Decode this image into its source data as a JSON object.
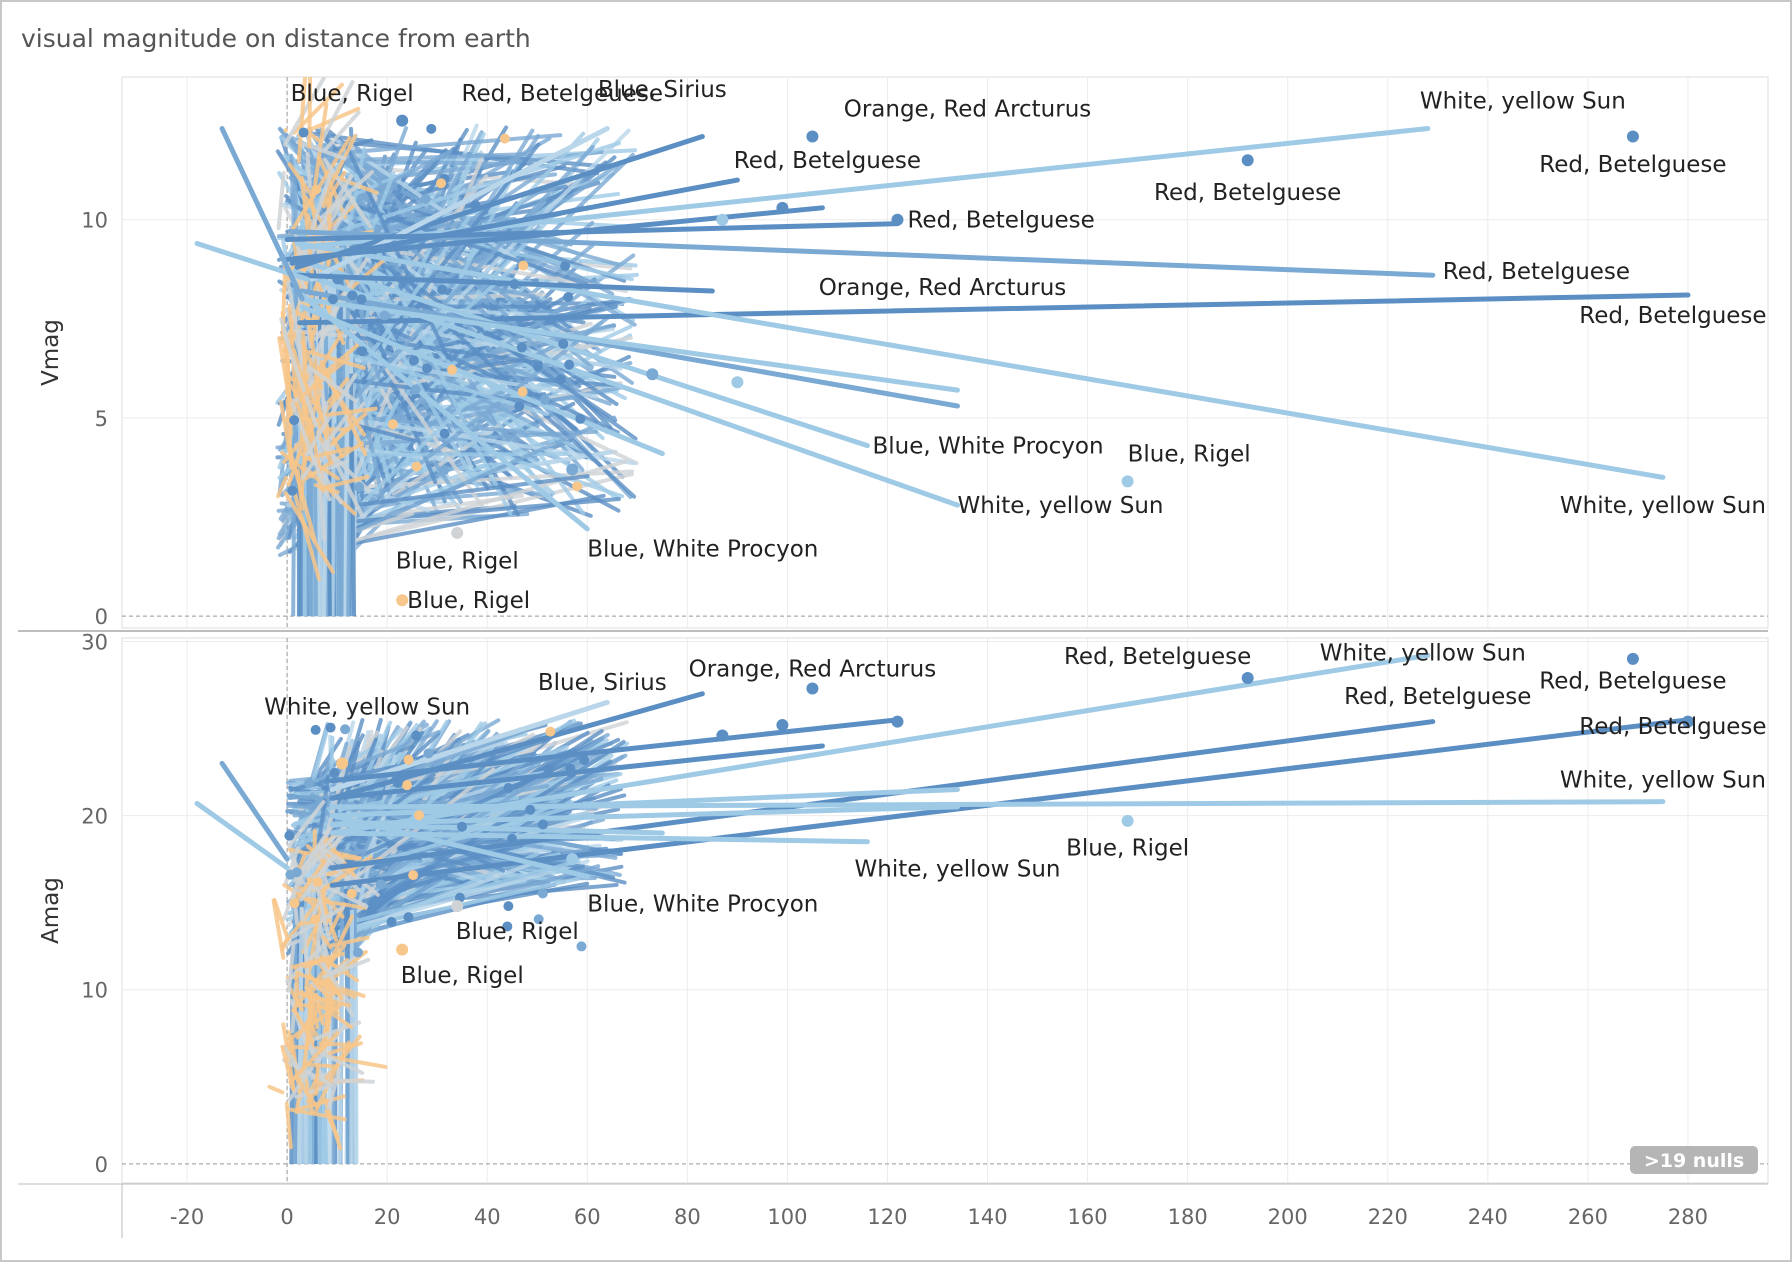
{
  "title": "visual magnitude on distance from earth",
  "null_badge": ">19 nulls",
  "colors": {
    "dark_blue": "#5b8fc4",
    "mid_blue": "#7aa9d3",
    "light_blue": "#9fcae6",
    "pale_blue": "#b9d6ea",
    "gray": "#cfd3d6",
    "orange": "#f7c68a",
    "grid": "#ececec",
    "zero_line": "#999999",
    "badge": "#b5b5b5"
  },
  "chart_data": [
    {
      "type": "line",
      "ylabel": "Vmag",
      "xlim": [
        -33,
        296
      ],
      "ylim": [
        -0.3,
        13.6
      ],
      "yticks": [
        0,
        5,
        10
      ],
      "xticks": [
        -20,
        0,
        20,
        40,
        60,
        80,
        100,
        120,
        140,
        160,
        180,
        200,
        220,
        240,
        260,
        280
      ],
      "grid": true,
      "long_segments": [
        {
          "x1": 0.8,
          "y1": 9.7,
          "x2": 229,
          "y2": 8.6,
          "color": "mid_blue"
        },
        {
          "x1": 2.5,
          "y1": 7.4,
          "x2": 280,
          "y2": 8.1,
          "color": "dark_blue"
        },
        {
          "x1": 3.0,
          "y1": 9.3,
          "x2": 228,
          "y2": 12.3,
          "color": "light_blue"
        },
        {
          "x1": 2.0,
          "y1": 9.4,
          "x2": 275,
          "y2": 3.5,
          "color": "light_blue"
        },
        {
          "x1": 1.5,
          "y1": 8.7,
          "x2": 134,
          "y2": 2.8,
          "color": "light_blue"
        },
        {
          "x1": 2.0,
          "y1": 9.0,
          "x2": 116,
          "y2": 4.3,
          "color": "light_blue"
        },
        {
          "x1": 2.0,
          "y1": 8.8,
          "x2": 83,
          "y2": 12.1,
          "color": "dark_blue"
        },
        {
          "x1": 5.0,
          "y1": 8.5,
          "x2": 64,
          "y2": 12.3,
          "color": "pale_blue"
        },
        {
          "x1": 0.0,
          "y1": 9.5,
          "x2": 122,
          "y2": 9.9,
          "color": "dark_blue"
        },
        {
          "x1": 0.0,
          "y1": 9.0,
          "x2": 107,
          "y2": 10.3,
          "color": "dark_blue"
        },
        {
          "x1": 3.0,
          "y1": 8.2,
          "x2": 134,
          "y2": 5.3,
          "color": "mid_blue"
        },
        {
          "x1": 3.0,
          "y1": 8.0,
          "x2": 134,
          "y2": 5.7,
          "color": "light_blue"
        },
        {
          "x1": 1.0,
          "y1": 8.9,
          "x2": 90,
          "y2": 11.0,
          "color": "dark_blue"
        },
        {
          "x1": 2.0,
          "y1": 8.6,
          "x2": 85,
          "y2": 8.2,
          "color": "dark_blue"
        },
        {
          "x1": 3.0,
          "y1": 8.1,
          "x2": 60,
          "y2": 2.2,
          "color": "light_blue"
        },
        {
          "x1": 3.0,
          "y1": 7.8,
          "x2": 75,
          "y2": 4.1,
          "color": "light_blue"
        },
        {
          "x1": -18,
          "y1": 9.4,
          "x2": 4,
          "y2": 8.5,
          "color": "light_blue"
        },
        {
          "x1": -13,
          "y1": 12.3,
          "x2": 3,
          "y2": 8.0,
          "color": "mid_blue"
        }
      ],
      "points": [
        {
          "x": 105,
          "y": 12.1,
          "color": "dark_blue"
        },
        {
          "x": 269,
          "y": 12.1,
          "color": "dark_blue"
        },
        {
          "x": 192,
          "y": 11.5,
          "color": "dark_blue"
        },
        {
          "x": 122,
          "y": 10.0,
          "color": "dark_blue"
        },
        {
          "x": 168,
          "y": 3.4,
          "color": "light_blue"
        },
        {
          "x": 23,
          "y": 0.4,
          "color": "orange"
        },
        {
          "x": 34,
          "y": 2.1,
          "color": "gray"
        },
        {
          "x": 57,
          "y": 3.7,
          "color": "mid_blue"
        },
        {
          "x": 73,
          "y": 6.1,
          "color": "mid_blue"
        },
        {
          "x": 90,
          "y": 5.9,
          "color": "light_blue"
        },
        {
          "x": 23,
          "y": 12.5,
          "color": "dark_blue"
        },
        {
          "x": 99,
          "y": 10.3,
          "color": "dark_blue"
        },
        {
          "x": 87,
          "y": 10.0,
          "color": "light_blue"
        }
      ],
      "annotations": [
        {
          "text": "Blue, Rigel",
          "x": 13,
          "y": 13.0,
          "anchor": "middle"
        },
        {
          "text": "Red, Betelgeuese",
          "x": 55,
          "y": 13.0,
          "anchor": "middle"
        },
        {
          "text": "Blue, Sirius",
          "x": 75,
          "y": 13.1,
          "anchor": "middle"
        },
        {
          "text": "Orange, Red Arcturus",
          "x": 136,
          "y": 12.6,
          "anchor": "middle"
        },
        {
          "text": "White, yellow Sun",
          "x": 247,
          "y": 12.8,
          "anchor": "middle"
        },
        {
          "text": "Red, Betelguese",
          "x": 108,
          "y": 11.3,
          "anchor": "middle"
        },
        {
          "text": "Red, Betelguese",
          "x": 192,
          "y": 10.5,
          "anchor": "middle"
        },
        {
          "text": "Red, Betelguese",
          "x": 269,
          "y": 11.2,
          "anchor": "middle"
        },
        {
          "text": "Red, Betelguese",
          "x": 124,
          "y": 9.8,
          "anchor": "start"
        },
        {
          "text": "Orange, Red Arcturus",
          "x": 131,
          "y": 8.1,
          "anchor": "middle"
        },
        {
          "text": "Red, Betelguese",
          "x": 231,
          "y": 8.5,
          "anchor": "start"
        },
        {
          "text": "Red, Betelguese",
          "x": 277,
          "y": 7.4,
          "anchor": "middle"
        },
        {
          "text": "Blue, White Procyon",
          "x": 117,
          "y": 4.1,
          "anchor": "start"
        },
        {
          "text": "Blue, Rigel",
          "x": 168,
          "y": 3.9,
          "anchor": "start"
        },
        {
          "text": "White, yellow Sun",
          "x": 134,
          "y": 2.6,
          "anchor": "start"
        },
        {
          "text": "White, yellow Sun",
          "x": 275,
          "y": 2.6,
          "anchor": "middle"
        },
        {
          "text": "Blue, Rigel",
          "x": 34,
          "y": 1.2,
          "anchor": "middle"
        },
        {
          "text": "Blue, White Procyon",
          "x": 60,
          "y": 1.5,
          "anchor": "start"
        },
        {
          "text": "Blue, Rigel",
          "x": 24,
          "y": 0.2,
          "anchor": "start"
        }
      ]
    },
    {
      "type": "line",
      "ylabel": "Amag",
      "xlim": [
        -33,
        296
      ],
      "ylim": [
        -1.1,
        30.2
      ],
      "yticks": [
        0,
        10,
        20,
        30
      ],
      "xticks": [
        -20,
        0,
        20,
        40,
        60,
        80,
        100,
        120,
        140,
        160,
        180,
        200,
        220,
        240,
        260,
        280
      ],
      "grid": true,
      "long_segments": [
        {
          "x1": 9,
          "y1": 19.0,
          "x2": 228,
          "y2": 29.2,
          "color": "light_blue"
        },
        {
          "x1": 9,
          "y1": 17.0,
          "x2": 229,
          "y2": 25.4,
          "color": "dark_blue"
        },
        {
          "x1": 9,
          "y1": 16.0,
          "x2": 280,
          "y2": 25.5,
          "color": "dark_blue"
        },
        {
          "x1": 9,
          "y1": 20.5,
          "x2": 275,
          "y2": 20.8,
          "color": "light_blue"
        },
        {
          "x1": 9,
          "y1": 20.0,
          "x2": 134,
          "y2": 21.5,
          "color": "light_blue"
        },
        {
          "x1": 9,
          "y1": 19.5,
          "x2": 134,
          "y2": 20.5,
          "color": "light_blue"
        },
        {
          "x1": 9,
          "y1": 19.0,
          "x2": 116,
          "y2": 18.5,
          "color": "light_blue"
        },
        {
          "x1": 9,
          "y1": 21.0,
          "x2": 83,
          "y2": 27.0,
          "color": "dark_blue"
        },
        {
          "x1": 9,
          "y1": 21.5,
          "x2": 64,
          "y2": 26.5,
          "color": "pale_blue"
        },
        {
          "x1": 9,
          "y1": 22.0,
          "x2": 122,
          "y2": 25.5,
          "color": "dark_blue"
        },
        {
          "x1": 9,
          "y1": 21.0,
          "x2": 107,
          "y2": 24.0,
          "color": "dark_blue"
        },
        {
          "x1": 9,
          "y1": 20.0,
          "x2": 60,
          "y2": 16.5,
          "color": "light_blue"
        },
        {
          "x1": 9,
          "y1": 19.5,
          "x2": 75,
          "y2": 19.0,
          "color": "light_blue"
        },
        {
          "x1": -18,
          "y1": 20.7,
          "x2": 0,
          "y2": 17.0,
          "color": "light_blue"
        },
        {
          "x1": -13,
          "y1": 23.0,
          "x2": 0,
          "y2": 17.5,
          "color": "mid_blue"
        }
      ],
      "points": [
        {
          "x": 105,
          "y": 27.3,
          "color": "dark_blue"
        },
        {
          "x": 269,
          "y": 29.0,
          "color": "dark_blue"
        },
        {
          "x": 192,
          "y": 27.9,
          "color": "dark_blue"
        },
        {
          "x": 122,
          "y": 25.4,
          "color": "dark_blue"
        },
        {
          "x": 280,
          "y": 25.4,
          "color": "dark_blue"
        },
        {
          "x": 168,
          "y": 19.7,
          "color": "light_blue"
        },
        {
          "x": 23,
          "y": 12.3,
          "color": "orange"
        },
        {
          "x": 34,
          "y": 14.8,
          "color": "gray"
        },
        {
          "x": 57,
          "y": 17.5,
          "color": "light_blue"
        },
        {
          "x": 87,
          "y": 24.6,
          "color": "dark_blue"
        },
        {
          "x": 99,
          "y": 25.2,
          "color": "dark_blue"
        },
        {
          "x": 11,
          "y": 23.0,
          "color": "orange"
        }
      ],
      "annotations": [
        {
          "text": "Blue, Sirius",
          "x": 63,
          "y": 27.2,
          "anchor": "middle"
        },
        {
          "text": "Orange, Red Arcturus",
          "x": 105,
          "y": 28.0,
          "anchor": "middle"
        },
        {
          "text": "White, yellow Sun",
          "x": 16,
          "y": 25.8,
          "anchor": "middle"
        },
        {
          "text": "Red, Betelguese",
          "x": 174,
          "y": 28.7,
          "anchor": "middle"
        },
        {
          "text": "White, yellow Sun",
          "x": 227,
          "y": 28.9,
          "anchor": "middle"
        },
        {
          "text": "Red, Betelguese",
          "x": 269,
          "y": 27.3,
          "anchor": "middle"
        },
        {
          "text": "Red, Betelguese",
          "x": 230,
          "y": 26.4,
          "anchor": "middle"
        },
        {
          "text": "Red, Betelguese",
          "x": 277,
          "y": 24.7,
          "anchor": "middle"
        },
        {
          "text": "White, yellow Sun",
          "x": 275,
          "y": 21.6,
          "anchor": "middle"
        },
        {
          "text": "Blue, Rigel",
          "x": 168,
          "y": 17.7,
          "anchor": "middle"
        },
        {
          "text": "White, yellow Sun",
          "x": 134,
          "y": 16.5,
          "anchor": "middle"
        },
        {
          "text": "Blue, White Procyon",
          "x": 60,
          "y": 14.5,
          "anchor": "start"
        },
        {
          "text": "Blue, Rigel",
          "x": 46,
          "y": 12.9,
          "anchor": "middle"
        },
        {
          "text": "Blue, Rigel",
          "x": 35,
          "y": 10.4,
          "anchor": "middle"
        }
      ]
    }
  ]
}
